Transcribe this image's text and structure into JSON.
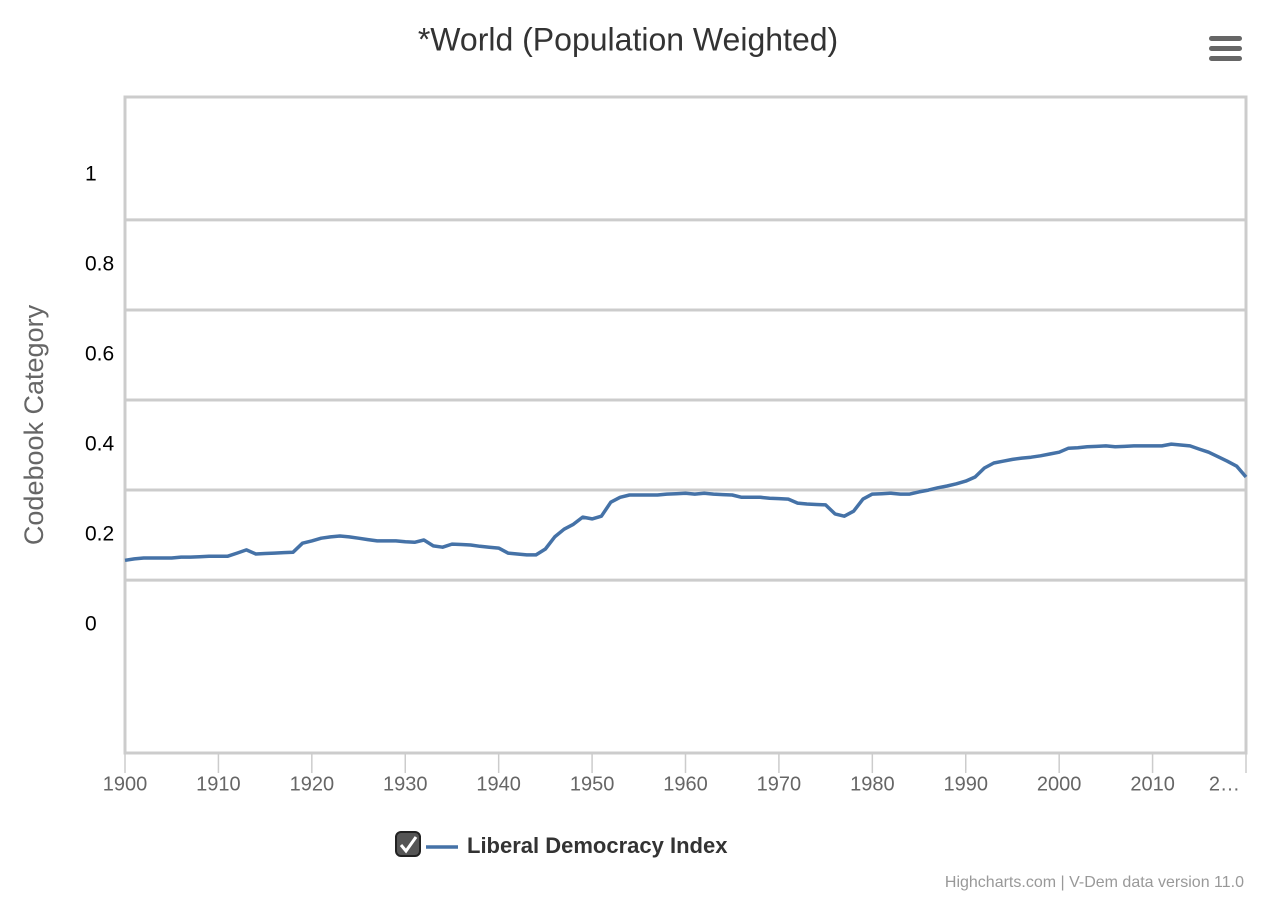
{
  "chart_data": {
    "type": "line",
    "title": "*World (Population Weighted)",
    "y_label": "Codebook Category",
    "credits": "Highcharts.com | V-Dem data version 11.0",
    "xlim": [
      1900,
      2020
    ],
    "xticks": [
      1900,
      1910,
      1920,
      1930,
      1940,
      1950,
      1960,
      1970,
      1980,
      1990,
      2000,
      2010,
      {
        "value": 2020,
        "label": "2…"
      }
    ],
    "ylim": [
      -0.284,
      1.173
    ],
    "yticks": [
      0,
      0.2,
      0.4,
      0.6,
      0.8,
      1
    ],
    "grid": true,
    "legend": "bottom",
    "x": [
      1900,
      1901,
      1902,
      1903,
      1904,
      1905,
      1906,
      1907,
      1908,
      1909,
      1910,
      1911,
      1912,
      1913,
      1914,
      1915,
      1916,
      1917,
      1918,
      1919,
      1920,
      1921,
      1922,
      1923,
      1924,
      1925,
      1926,
      1927,
      1928,
      1929,
      1930,
      1931,
      1932,
      1933,
      1934,
      1935,
      1936,
      1937,
      1938,
      1939,
      1940,
      1941,
      1942,
      1943,
      1944,
      1945,
      1946,
      1947,
      1948,
      1949,
      1950,
      1951,
      1952,
      1953,
      1954,
      1955,
      1956,
      1957,
      1958,
      1959,
      1960,
      1961,
      1962,
      1963,
      1964,
      1965,
      1966,
      1967,
      1968,
      1969,
      1970,
      1971,
      1972,
      1973,
      1974,
      1975,
      1976,
      1977,
      1978,
      1979,
      1980,
      1981,
      1982,
      1983,
      1984,
      1985,
      1986,
      1987,
      1988,
      1989,
      1990,
      1991,
      1992,
      1993,
      1994,
      1995,
      1996,
      1997,
      1998,
      1999,
      2000,
      2001,
      2002,
      2003,
      2004,
      2005,
      2006,
      2007,
      2008,
      2009,
      2010,
      2011,
      2012,
      2013,
      2014,
      2015,
      2016,
      2017,
      2018,
      2019,
      2020
    ],
    "series": [
      {
        "name": "Liberal Democracy Index",
        "color": "#4572a7",
        "values": [
          0.144,
          0.147,
          0.149,
          0.149,
          0.149,
          0.149,
          0.151,
          0.151,
          0.152,
          0.153,
          0.153,
          0.153,
          0.16,
          0.167,
          0.158,
          0.159,
          0.16,
          0.161,
          0.162,
          0.182,
          0.187,
          0.193,
          0.196,
          0.198,
          0.196,
          0.193,
          0.19,
          0.187,
          0.187,
          0.187,
          0.185,
          0.184,
          0.189,
          0.176,
          0.173,
          0.18,
          0.179,
          0.178,
          0.175,
          0.173,
          0.171,
          0.16,
          0.158,
          0.156,
          0.156,
          0.169,
          0.196,
          0.213,
          0.224,
          0.24,
          0.236,
          0.242,
          0.273,
          0.284,
          0.289,
          0.289,
          0.289,
          0.289,
          0.291,
          0.292,
          0.293,
          0.291,
          0.293,
          0.291,
          0.29,
          0.289,
          0.284,
          0.284,
          0.284,
          0.282,
          0.281,
          0.28,
          0.271,
          0.269,
          0.268,
          0.267,
          0.247,
          0.242,
          0.253,
          0.28,
          0.291,
          0.292,
          0.293,
          0.291,
          0.291,
          0.296,
          0.3,
          0.305,
          0.309,
          0.314,
          0.32,
          0.329,
          0.349,
          0.36,
          0.364,
          0.368,
          0.371,
          0.373,
          0.376,
          0.38,
          0.384,
          0.393,
          0.394,
          0.396,
          0.397,
          0.398,
          0.396,
          0.397,
          0.398,
          0.398,
          0.398,
          0.398,
          0.402,
          0.4,
          0.398,
          0.391,
          0.384,
          0.374,
          0.364,
          0.353,
          0.329
        ]
      }
    ]
  }
}
